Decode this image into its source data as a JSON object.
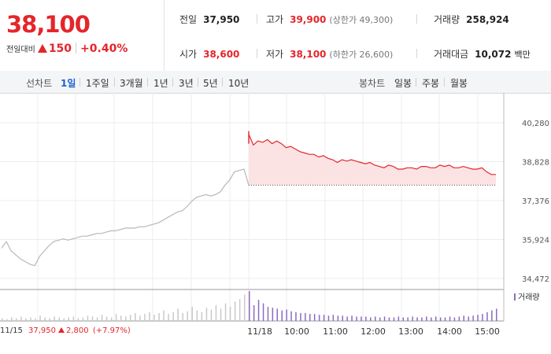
{
  "summary": {
    "price": "38,100",
    "change_label": "전일대비",
    "change_value": "150",
    "change_pct": "+0.40%",
    "rows": [
      [
        {
          "label": "전일",
          "value": "37,950",
          "red": false,
          "note": ""
        },
        {
          "label": "고가",
          "value": "39,900",
          "red": true,
          "note": "(상한가 49,300)"
        },
        {
          "label": "거래량",
          "value": "258,924",
          "red": false,
          "note": ""
        }
      ],
      [
        {
          "label": "시가",
          "value": "38,600",
          "red": true,
          "note": ""
        },
        {
          "label": "저가",
          "value": "38,100",
          "red": true,
          "note": "(하한가 26,600)"
        },
        {
          "label": "거래대금",
          "value": "10,072",
          "red": false,
          "note": "백만"
        }
      ]
    ]
  },
  "tabs": {
    "line_label": "선차트",
    "line_tabs": [
      "1일",
      "1주일",
      "3개월",
      "1년",
      "3년",
      "5년",
      "10년"
    ],
    "active": "1일",
    "candle_label": "봉차트",
    "candle_tabs": [
      "일봉",
      "주봉",
      "월봉"
    ]
  },
  "colors": {
    "up": "#e4262b",
    "prev_day_line": "#b8b8b8",
    "volume_bar": "#8b6bc0",
    "grid": "#ececec"
  },
  "chart_data": {
    "type": "line",
    "y_ticks": [
      "40,280",
      "38,828",
      "37,376",
      "35,924",
      "34,472"
    ],
    "ylim": [
      34472,
      40280
    ],
    "reference_price": 37950,
    "x_tick_labels": [
      "11/18",
      "10:00",
      "11:00",
      "12:00",
      "13:00",
      "14:00",
      "15:00"
    ],
    "volume_legend": "거래량",
    "footer": {
      "date": "11/15",
      "price": "37,950",
      "change": "2,800",
      "pct": "(+7.97%)"
    },
    "series": [
      {
        "session": "11/15",
        "values": [
          35600,
          35850,
          35500,
          35350,
          35200,
          35100,
          35000,
          34950,
          35300,
          35500,
          35700,
          35850,
          35900,
          35950,
          35900,
          35950,
          36000,
          36050,
          36050,
          36100,
          36150,
          36150,
          36200,
          36250,
          36250,
          36300,
          36350,
          36350,
          36350,
          36400,
          36400,
          36450,
          36500,
          36550,
          36650,
          36750,
          36850,
          36950,
          37000,
          37150,
          37350,
          37500,
          37550,
          37600,
          37550,
          37600,
          37700,
          37950,
          38150,
          38450,
          38500,
          38550,
          37950
        ]
      },
      {
        "session": "11/18",
        "values": [
          39850,
          39450,
          39600,
          39550,
          39650,
          39500,
          39600,
          39500,
          39350,
          39400,
          39300,
          39200,
          39150,
          39100,
          39100,
          39000,
          39050,
          38950,
          38900,
          38800,
          38900,
          38850,
          38900,
          38850,
          38800,
          38750,
          38800,
          38700,
          38650,
          38600,
          38700,
          38650,
          38550,
          38550,
          38600,
          38600,
          38550,
          38650,
          38650,
          38600,
          38600,
          38700,
          38650,
          38700,
          38600,
          38600,
          38650,
          38600,
          38550,
          38550,
          38600,
          38450,
          38350,
          38350
        ]
      }
    ],
    "volume": {
      "prev": [
        3,
        2,
        4,
        3,
        5,
        3,
        4,
        3,
        6,
        4,
        3,
        5,
        4,
        3,
        4,
        5,
        3,
        4,
        6,
        5,
        4,
        7,
        5,
        4,
        8,
        6,
        5,
        7,
        9,
        6,
        8,
        10,
        7,
        9,
        12,
        8,
        10,
        14,
        9,
        11,
        16,
        12,
        10,
        15,
        13,
        18,
        14,
        20,
        16,
        22,
        25,
        30,
        18
      ],
      "today": [
        34,
        18,
        24,
        20,
        16,
        15,
        14,
        12,
        13,
        11,
        10,
        9,
        9,
        8,
        8,
        7,
        7,
        6,
        7,
        6,
        6,
        5,
        6,
        5,
        5,
        5,
        4,
        5,
        4,
        5,
        4,
        4,
        5,
        4,
        4,
        5,
        4,
        4,
        5,
        4,
        5,
        4,
        4,
        5,
        4,
        5,
        6,
        5,
        6,
        7,
        8,
        10,
        12,
        14
      ]
    }
  }
}
